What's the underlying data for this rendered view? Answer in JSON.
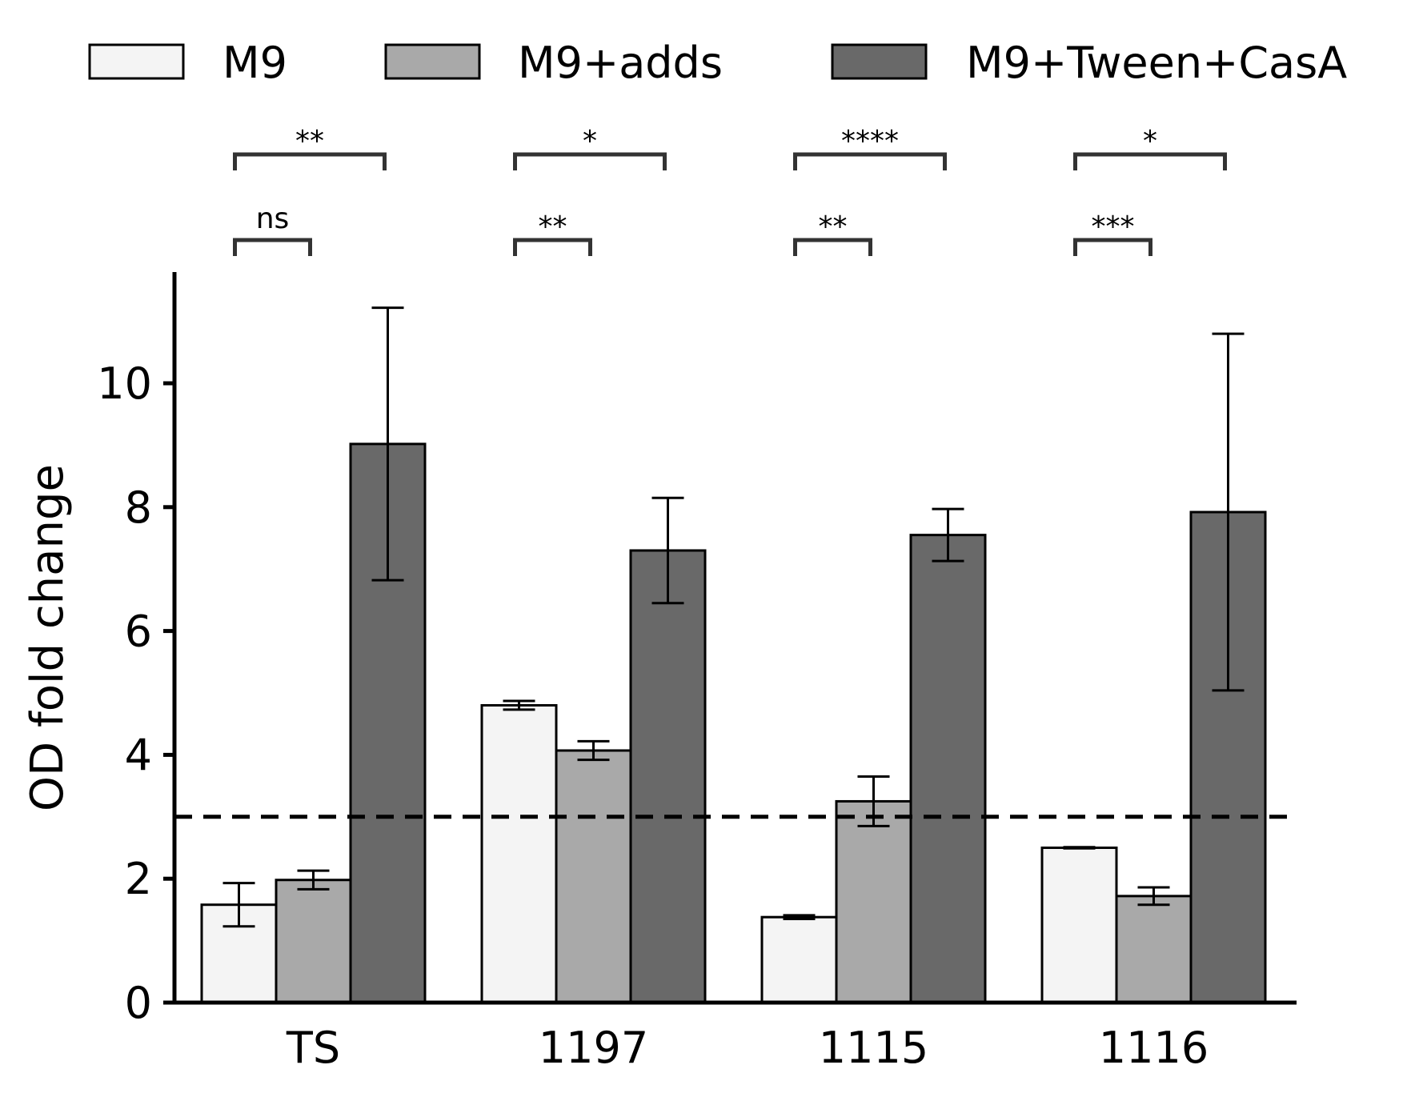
{
  "chart_data": {
    "type": "bar",
    "categories": [
      "TS",
      "1197",
      "1115",
      "1116"
    ],
    "series": [
      {
        "name": "M9",
        "color": "#f4f4f4",
        "values": [
          1.58,
          4.8,
          1.38,
          2.5
        ],
        "errors": [
          0.35,
          0.07,
          0.03,
          0.01
        ]
      },
      {
        "name": "M9+adds",
        "color": "#a9a9a9",
        "values": [
          1.98,
          4.07,
          3.25,
          1.72
        ],
        "errors": [
          0.15,
          0.15,
          0.4,
          0.14
        ]
      },
      {
        "name": "M9+Tween+CasA",
        "color": "#696969",
        "values": [
          9.02,
          7.3,
          7.55,
          7.92
        ],
        "errors": [
          2.2,
          0.85,
          0.42,
          2.88
        ]
      }
    ],
    "ylabel": "OD fold change",
    "xlabel": "",
    "ylim": [
      0,
      11.8
    ],
    "yticks": [
      "0",
      "2",
      "4",
      "6",
      "8",
      "10"
    ],
    "reference_line": {
      "y": 3,
      "style": "dashed"
    },
    "legend_position": "top",
    "grid": false,
    "significance": [
      {
        "category": "TS",
        "pair": "M9 vs M9+adds",
        "label": "ns"
      },
      {
        "category": "TS",
        "pair": "M9 vs M9+Tween+CasA",
        "label": "**"
      },
      {
        "category": "1197",
        "pair": "M9 vs M9+adds",
        "label": "**"
      },
      {
        "category": "1197",
        "pair": "M9 vs M9+Tween+CasA",
        "label": "*"
      },
      {
        "category": "1115",
        "pair": "M9 vs M9+adds",
        "label": "**"
      },
      {
        "category": "1115",
        "pair": "M9 vs M9+Tween+CasA",
        "label": "****"
      },
      {
        "category": "1116",
        "pair": "M9 vs M9+adds",
        "label": "***"
      },
      {
        "category": "1116",
        "pair": "M9 vs M9+Tween+CasA",
        "label": "*"
      }
    ]
  }
}
